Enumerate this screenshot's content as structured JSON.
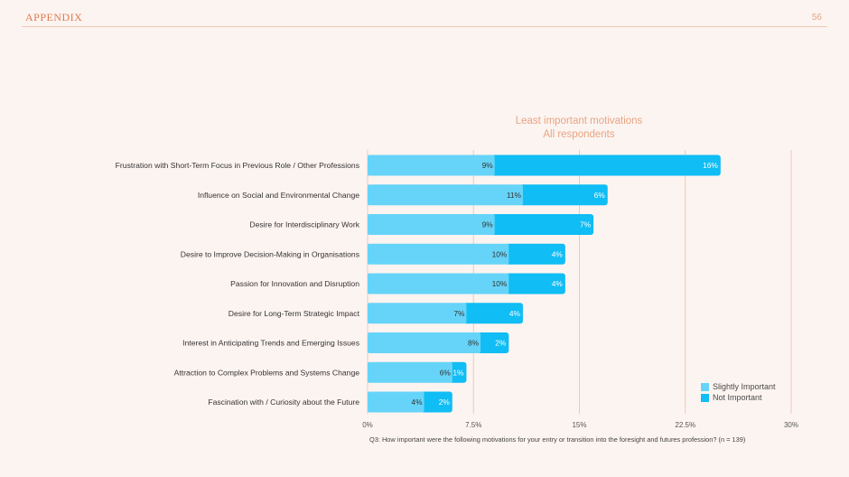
{
  "header": {
    "section_label": "APPENDIX",
    "page_number": "56"
  },
  "chart_title_lines": [
    "Least important motivations",
    "All respondents"
  ],
  "legend": [
    {
      "label": "Slightly Important",
      "color": "#66d4f8"
    },
    {
      "label": "Not Important",
      "color": "#10bdf5"
    }
  ],
  "footnote": "Q3: How important were the following motivations for your entry or transition into the foresight and futures profession? (n = 139)",
  "chart_data": {
    "type": "bar",
    "orientation": "horizontal",
    "stacked": true,
    "categories": [
      "Frustration with Short-Term Focus in Previous Role / Other Professions",
      "Influence on Social and Environmental Change",
      "Desire for Interdisciplinary Work",
      "Desire to Improve Decision-Making in Organisations",
      "Passion for Innovation and Disruption",
      "Desire for Long-Term Strategic Impact",
      "Interest in Anticipating Trends and Emerging Issues",
      "Attraction to Complex Problems and Systems Change",
      "Fascination with / Curiosity about the Future"
    ],
    "series": [
      {
        "name": "Slightly Important",
        "color": "#66d4f8",
        "values": [
          9,
          11,
          9,
          10,
          10,
          7,
          8,
          6,
          4
        ]
      },
      {
        "name": "Not Important",
        "color": "#10bdf5",
        "values": [
          16,
          6,
          7,
          4,
          4,
          4,
          2,
          1,
          2
        ]
      }
    ],
    "value_suffix": "%",
    "xlim": [
      0,
      30
    ],
    "x_ticks": [
      0,
      7.5,
      15,
      22.5,
      30
    ],
    "x_tick_labels": [
      "0%",
      "7.5%",
      "15%",
      "22.5%",
      "30%"
    ],
    "grid": true,
    "legend_position": "bottom-right"
  }
}
